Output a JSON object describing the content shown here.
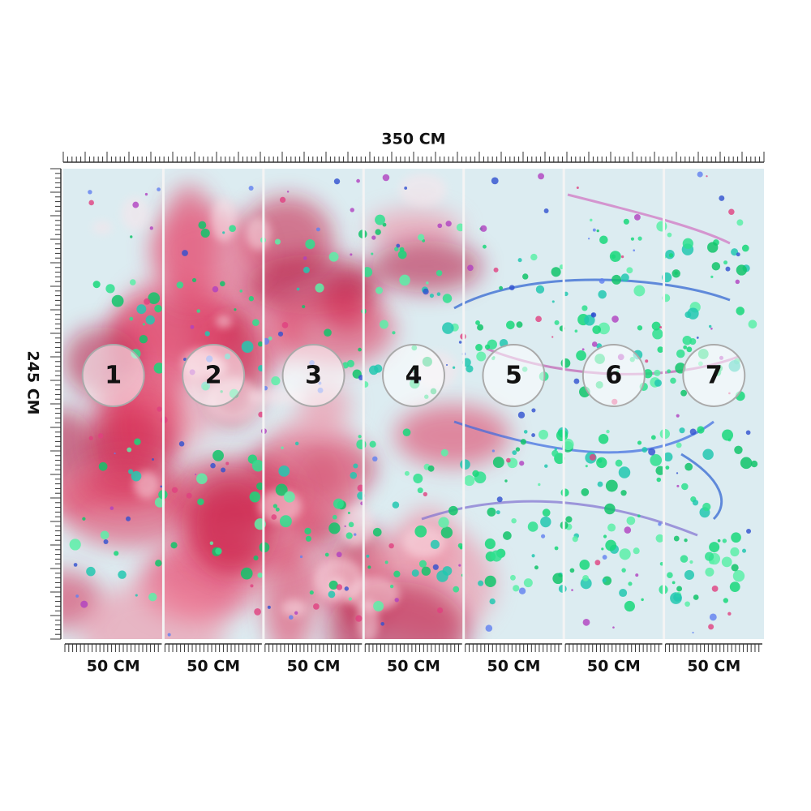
{
  "dimensions": {
    "width": "350 CM",
    "height": "245 CM"
  },
  "panels": [
    {
      "number": "1",
      "width": "50 CM"
    },
    {
      "number": "2",
      "width": "50 CM"
    },
    {
      "number": "3",
      "width": "50 CM"
    },
    {
      "number": "4",
      "width": "50 CM"
    },
    {
      "number": "5",
      "width": "50 CM"
    },
    {
      "number": "6",
      "width": "50 CM"
    },
    {
      "number": "7",
      "width": "50 CM"
    }
  ]
}
